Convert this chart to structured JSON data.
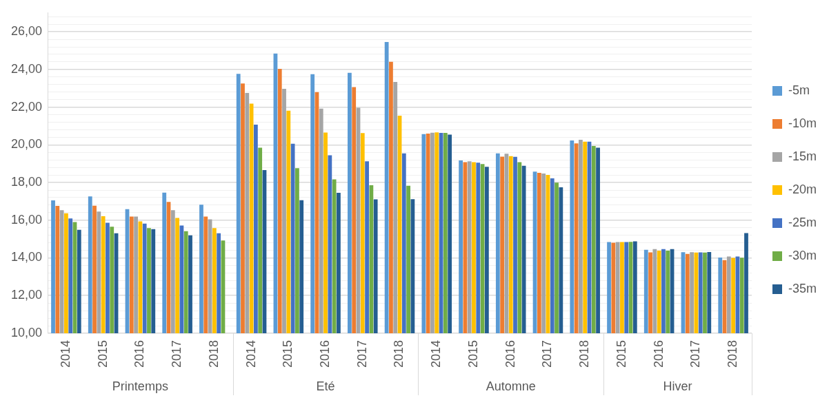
{
  "chart_data": {
    "type": "bar",
    "categories": [
      "2014",
      "2015",
      "2016",
      "2017",
      "2018",
      "2014",
      "2015",
      "2016",
      "2017",
      "2018",
      "2014",
      "2015",
      "2016",
      "2017",
      "2018",
      "2015",
      "2016",
      "2017",
      "2018"
    ],
    "annotations": [
      "Printemps",
      "Eté",
      "Automne",
      "Hiver"
    ],
    "series": [
      {
        "name": "-5m",
        "color": "#5b9bd5",
        "values": [
          17.05,
          17.26,
          16.59,
          17.46,
          16.82,
          23.77,
          24.85,
          23.75,
          23.82,
          25.46,
          20.57,
          19.17,
          19.55,
          18.58,
          20.23,
          14.84,
          14.43,
          14.3,
          14.02
        ]
      },
      {
        "name": "-10m",
        "color": "#ed7d31",
        "values": [
          16.76,
          16.77,
          16.19,
          16.97,
          16.19,
          23.26,
          24.03,
          22.8,
          23.06,
          24.41,
          20.6,
          19.08,
          19.37,
          18.51,
          20.08,
          14.8,
          14.29,
          14.21,
          13.88
        ]
      },
      {
        "name": "-15m",
        "color": "#a5a5a5",
        "values": [
          16.53,
          16.46,
          16.19,
          16.53,
          16.05,
          22.75,
          22.97,
          21.92,
          21.97,
          23.34,
          20.64,
          19.13,
          19.53,
          18.48,
          20.27,
          14.84,
          14.47,
          14.3,
          14.07
        ]
      },
      {
        "name": "-20m",
        "color": "#ffc000",
        "values": [
          16.37,
          16.21,
          15.94,
          16.12,
          15.58,
          22.19,
          21.81,
          20.65,
          20.62,
          21.55,
          20.66,
          19.08,
          19.4,
          18.4,
          20.17,
          14.84,
          14.38,
          14.28,
          14.0
        ]
      },
      {
        "name": "-25m",
        "color": "#4472c4",
        "values": [
          16.09,
          15.86,
          15.82,
          15.72,
          15.31,
          21.07,
          20.06,
          19.45,
          19.13,
          19.55,
          20.63,
          19.05,
          19.36,
          18.22,
          20.17,
          14.84,
          14.47,
          14.29,
          14.07
        ]
      },
      {
        "name": "-30m",
        "color": "#70ad47",
        "values": [
          15.9,
          15.65,
          15.58,
          15.42,
          14.92,
          19.85,
          18.76,
          18.17,
          17.86,
          17.83,
          20.63,
          18.98,
          19.08,
          17.99,
          19.94,
          14.85,
          14.38,
          14.28,
          14.01
        ]
      },
      {
        "name": "-35m",
        "color": "#255e91",
        "values": [
          15.49,
          15.31,
          15.53,
          15.2,
          null,
          18.66,
          17.06,
          17.45,
          17.11,
          17.12,
          20.54,
          18.83,
          18.89,
          17.75,
          19.85,
          14.88,
          14.47,
          14.31,
          15.32
        ]
      }
    ],
    "ylim": [
      10,
      27
    ],
    "yticks": [
      {
        "value": 10,
        "label": "10,00"
      },
      {
        "value": 10.4,
        "label": null
      },
      {
        "value": 10.8,
        "label": null
      },
      {
        "value": 11.2,
        "label": null
      },
      {
        "value": 11.6,
        "label": null
      },
      {
        "value": 12,
        "label": "12,00"
      },
      {
        "value": 12.4,
        "label": null
      },
      {
        "value": 12.8,
        "label": null
      },
      {
        "value": 13.2,
        "label": null
      },
      {
        "value": 13.6,
        "label": null
      },
      {
        "value": 14,
        "label": "14,00"
      },
      {
        "value": 14.4,
        "label": null
      },
      {
        "value": 14.8,
        "label": null
      },
      {
        "value": 15.2,
        "label": null
      },
      {
        "value": 15.6,
        "label": null
      },
      {
        "value": 16,
        "label": "16,00"
      },
      {
        "value": 16.4,
        "label": null
      },
      {
        "value": 16.8,
        "label": null
      },
      {
        "value": 17.2,
        "label": null
      },
      {
        "value": 17.6,
        "label": null
      },
      {
        "value": 18,
        "label": "18,00"
      },
      {
        "value": 18.4,
        "label": null
      },
      {
        "value": 18.8,
        "label": null
      },
      {
        "value": 19.2,
        "label": null
      },
      {
        "value": 19.6,
        "label": null
      },
      {
        "value": 20,
        "label": "20,00"
      },
      {
        "value": 20.4,
        "label": null
      },
      {
        "value": 20.8,
        "label": null
      },
      {
        "value": 21.2,
        "label": null
      },
      {
        "value": 21.6,
        "label": null
      },
      {
        "value": 22,
        "label": "22,00"
      },
      {
        "value": 22.4,
        "label": null
      },
      {
        "value": 22.8,
        "label": null
      },
      {
        "value": 23.2,
        "label": null
      },
      {
        "value": 23.6,
        "label": null
      },
      {
        "value": 24,
        "label": "24,00"
      },
      {
        "value": 24.4,
        "label": null
      },
      {
        "value": 24.8,
        "label": null
      },
      {
        "value": 25.2,
        "label": null
      },
      {
        "value": 25.6,
        "label": null
      },
      {
        "value": 26,
        "label": "26,00"
      },
      {
        "value": 26.4,
        "label": null
      },
      {
        "value": 26.8,
        "label": null
      }
    ],
    "grid": "y",
    "legend": "right"
  }
}
